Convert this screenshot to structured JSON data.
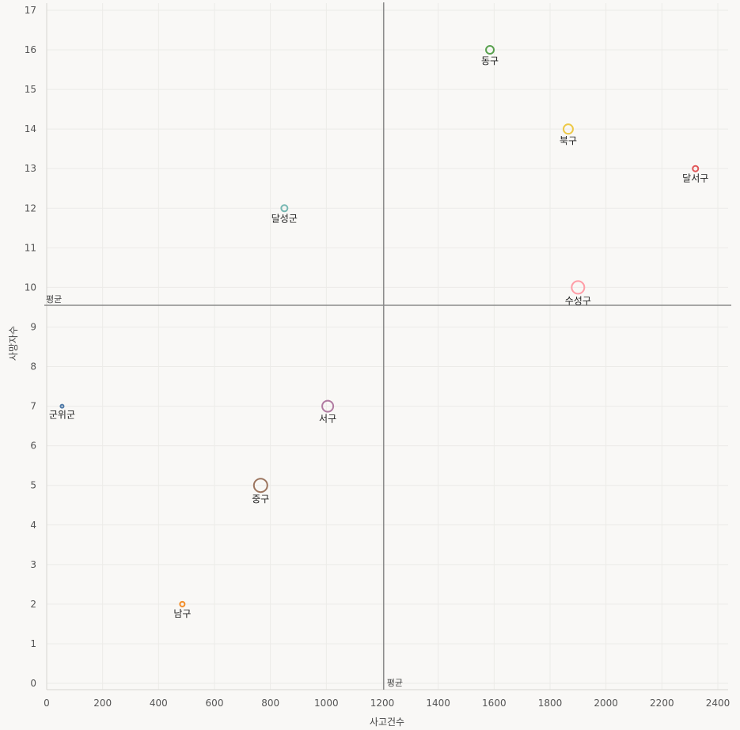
{
  "chart_data": {
    "type": "scatter",
    "title": "",
    "xlabel": "사고건수",
    "ylabel": "사망자수",
    "xlim": [
      0,
      2450
    ],
    "ylim": [
      0,
      17
    ],
    "x_ticks": [
      0,
      200,
      400,
      600,
      800,
      1000,
      1200,
      1400,
      1600,
      1800,
      2000,
      2200,
      2400
    ],
    "y_ticks": [
      0,
      1,
      2,
      3,
      4,
      5,
      6,
      7,
      8,
      9,
      10,
      11,
      12,
      13,
      14,
      15,
      16,
      17
    ],
    "grid": true,
    "reference_lines": {
      "x_mean": {
        "label": "평균",
        "value": 1205
      },
      "y_mean": {
        "label": "평균",
        "value": 9.55
      }
    },
    "points": [
      {
        "label": "동구",
        "x": 1585,
        "y": 16,
        "color": "#59a14f",
        "size": 5
      },
      {
        "label": "북구",
        "x": 1865,
        "y": 14,
        "color": "#edc948",
        "size": 6
      },
      {
        "label": "달서구",
        "x": 2320,
        "y": 13,
        "color": "#e15759",
        "size": 3.5
      },
      {
        "label": "달성군",
        "x": 850,
        "y": 12,
        "color": "#76b7b2",
        "size": 4
      },
      {
        "label": "수성구",
        "x": 1900,
        "y": 10,
        "color": "#ff9da7",
        "size": 8
      },
      {
        "label": "서구",
        "x": 1005,
        "y": 7,
        "color": "#b07aa1",
        "size": 7
      },
      {
        "label": "군위군",
        "x": 55,
        "y": 7,
        "color": "#4e79a7",
        "size": 2
      },
      {
        "label": "중구",
        "x": 765,
        "y": 5,
        "color": "#9c755f",
        "size": 8.5
      },
      {
        "label": "남구",
        "x": 485,
        "y": 2,
        "color": "#f28e2b",
        "size": 3
      }
    ]
  }
}
